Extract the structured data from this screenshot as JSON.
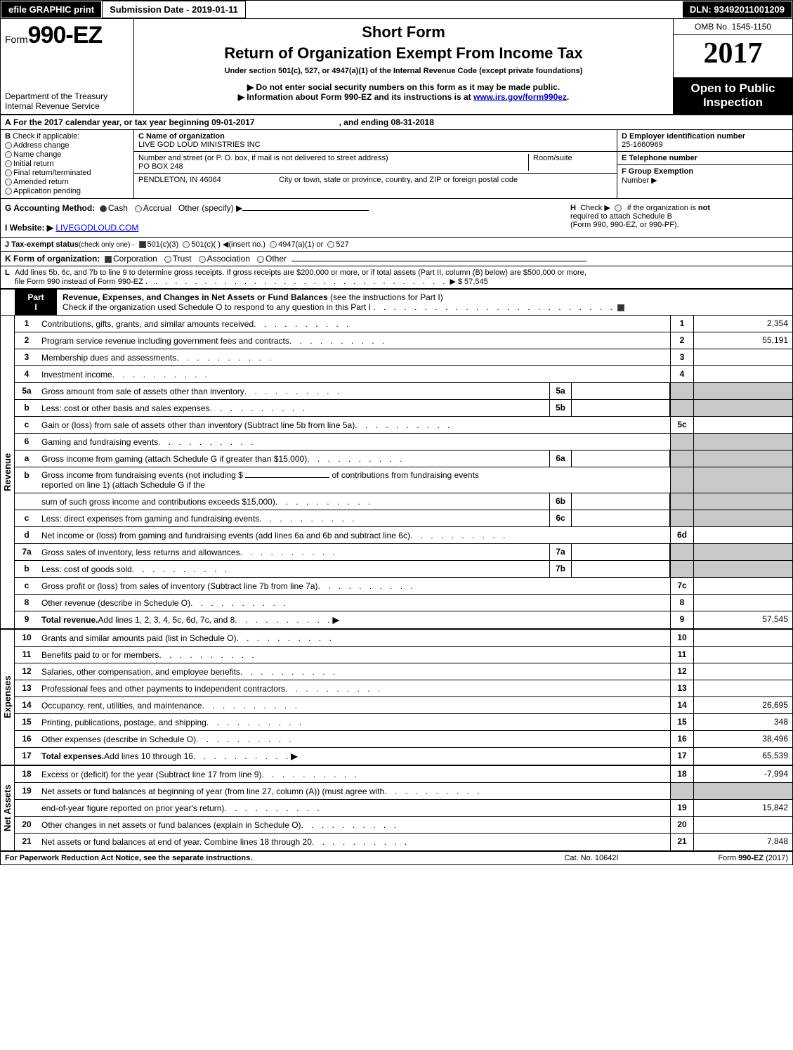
{
  "topbar": {
    "print_btn": "efile GRAPHIC print",
    "submission": "Submission Date - 2019-01-11",
    "dln": "DLN: 93492011001209"
  },
  "hdr": {
    "form_prefix": "Form",
    "form_no": "990-EZ",
    "dept1": "Department of the Treasury",
    "dept2": "Internal Revenue Service",
    "title1": "Short Form",
    "title2": "Return of Organization Exempt From Income Tax",
    "sub": "Under section 501(c), 527, or 4947(a)(1) of the Internal Revenue Code (except private foundations)",
    "note1": "▶ Do not enter social security numbers on this form as it may be made public.",
    "note2_pre": "▶ Information about Form 990-EZ and its instructions is at ",
    "note2_link": "www.irs.gov/form990ez",
    "note2_post": ".",
    "omb": "OMB No. 1545-1150",
    "year": "2017",
    "pub1": "Open to Public",
    "pub2": "Inspection"
  },
  "a": {
    "label": "A",
    "text1": "For the 2017 calendar year, or tax year beginning 09-01-2017",
    "text2": ", and ending 08-31-2018"
  },
  "b": {
    "label": "B",
    "heading": "Check if applicable:",
    "opts": [
      "Address change",
      "Name change",
      "Initial return",
      "Final return/terminated",
      "Amended return",
      "Application pending"
    ]
  },
  "c": {
    "label": "C Name of organization",
    "org": "LIVE GOD LOUD MINISTRIES INC",
    "addr_lbl": "Number and street (or P. O. box, if mail is not delivered to street address)",
    "room_lbl": "Room/suite",
    "addr": "PO BOX 248",
    "city_lbl": "City or town, state or province, country, and ZIP or foreign postal code",
    "city": "PENDLETON, IN  46064"
  },
  "d": {
    "label": "D Employer identification number",
    "val": "25-1660969"
  },
  "e": {
    "label": "E Telephone number",
    "val": ""
  },
  "f": {
    "label": "F Group Exemption",
    "label2": "Number  ▶",
    "val": ""
  },
  "g": {
    "label": "G Accounting Method:",
    "cash": "Cash",
    "accrual": "Accrual",
    "other": "Other (specify) ▶"
  },
  "h": {
    "label": "H",
    "text1": "Check ▶",
    "text2": "if the organization is ",
    "not": "not",
    "text3": "required to attach Schedule B",
    "text4": "(Form 990, 990-EZ, or 990-PF)."
  },
  "i": {
    "label": "I Website: ▶",
    "val": "LIVEGODLOUD.COM"
  },
  "j": {
    "label": "J Tax-exempt status",
    "sub": "(check only one) -",
    "o1": "501(c)(3)",
    "o2": "501(c)(  ) ◀(insert no.)",
    "o3": "4947(a)(1) or",
    "o4": "527"
  },
  "k": {
    "label": "K Form of organization:",
    "o1": "Corporation",
    "o2": "Trust",
    "o3": "Association",
    "o4": "Other"
  },
  "l": {
    "label": "L",
    "text1": "Add lines 5b, 6c, and 7b to line 9 to determine gross receipts. If gross receipts are $200,000 or more, or if total assets (Part II, column (B) below) are $500,000 or more,",
    "text2": "file Form 990 instead of Form 990-EZ",
    "amount": "▶ $ 57,545"
  },
  "part1": {
    "label": "Part I",
    "title": "Revenue, Expenses, and Changes in Net Assets or Fund Balances",
    "title_sub": " (see the instructions for Part I)",
    "check_line": "Check if the organization used Schedule O to respond to any question in this Part I"
  },
  "tabs": {
    "revenue": "Revenue",
    "expenses": "Expenses",
    "netassets": "Net Assets"
  },
  "lines_revenue": [
    {
      "no": "1",
      "desc": "Contributions, gifts, grants, and similar amounts received",
      "box": "1",
      "val": "2,354"
    },
    {
      "no": "2",
      "desc": "Program service revenue including government fees and contracts",
      "box": "2",
      "val": "55,191"
    },
    {
      "no": "3",
      "desc": "Membership dues and assessments",
      "box": "3",
      "val": ""
    },
    {
      "no": "4",
      "desc": "Investment income",
      "box": "4",
      "val": ""
    },
    {
      "no": "5a",
      "desc": "Gross amount from sale of assets other than inventory",
      "sub": "5a",
      "boxgrey": true
    },
    {
      "no": "b",
      "desc": "Less: cost or other basis and sales expenses",
      "sub": "5b",
      "boxgrey": true
    },
    {
      "no": "c",
      "desc": "Gain or (loss) from sale of assets other than inventory (Subtract line 5b from line 5a)",
      "box": "5c",
      "val": ""
    },
    {
      "no": "6",
      "desc": "Gaming and fundraising events",
      "boxgrey": true,
      "noboxno": true
    },
    {
      "no": "a",
      "desc": "Gross income from gaming (attach Schedule G if greater than $15,000)",
      "sub": "6a",
      "boxgrey": true
    },
    {
      "no": "b",
      "desc_pre": "Gross income from fundraising events (not including $ ",
      "desc_mid": " of contributions from fundraising events",
      "desc2": "reported on line 1) (attach Schedule G if the",
      "boxgrey": true,
      "noboxno": true,
      "multiline": true
    },
    {
      "no": "",
      "desc": "sum of such gross income and contributions exceeds $15,000)",
      "sub": "6b",
      "boxgrey": true
    },
    {
      "no": "c",
      "desc": "Less: direct expenses from gaming and fundraising events",
      "sub": "6c",
      "boxgrey": true
    },
    {
      "no": "d",
      "desc": "Net income or (loss) from gaming and fundraising events (add lines 6a and 6b and subtract line 6c)",
      "box": "6d",
      "val": ""
    },
    {
      "no": "7a",
      "desc": "Gross sales of inventory, less returns and allowances",
      "sub": "7a",
      "boxgrey": true
    },
    {
      "no": "b",
      "desc": "Less: cost of goods sold",
      "sub": "7b",
      "boxgrey": true
    },
    {
      "no": "c",
      "desc": "Gross profit or (loss) from sales of inventory (Subtract line 7b from line 7a)",
      "box": "7c",
      "val": ""
    },
    {
      "no": "8",
      "desc": "Other revenue (describe in Schedule O)",
      "box": "8",
      "val": ""
    },
    {
      "no": "9",
      "desc_b": "Total revenue.",
      "desc": " Add lines 1, 2, 3, 4, 5c, 6d, 7c, and 8",
      "box": "9",
      "val": "57,545",
      "arrow": true
    }
  ],
  "lines_expenses": [
    {
      "no": "10",
      "desc": "Grants and similar amounts paid (list in Schedule O)",
      "box": "10",
      "val": ""
    },
    {
      "no": "11",
      "desc": "Benefits paid to or for members",
      "box": "11",
      "val": ""
    },
    {
      "no": "12",
      "desc": "Salaries, other compensation, and employee benefits",
      "box": "12",
      "val": ""
    },
    {
      "no": "13",
      "desc": "Professional fees and other payments to independent contractors",
      "box": "13",
      "val": ""
    },
    {
      "no": "14",
      "desc": "Occupancy, rent, utilities, and maintenance",
      "box": "14",
      "val": "26,695"
    },
    {
      "no": "15",
      "desc": "Printing, publications, postage, and shipping",
      "box": "15",
      "val": "348"
    },
    {
      "no": "16",
      "desc": "Other expenses (describe in Schedule O)",
      "box": "16",
      "val": "38,496"
    },
    {
      "no": "17",
      "desc_b": "Total expenses.",
      "desc": " Add lines 10 through 16",
      "box": "17",
      "val": "65,539",
      "arrow": true
    }
  ],
  "lines_netassets": [
    {
      "no": "18",
      "desc": "Excess or (deficit) for the year (Subtract line 17 from line 9)",
      "box": "18",
      "val": "-7,994"
    },
    {
      "no": "19",
      "desc": "Net assets or fund balances at beginning of year (from line 27, column (A)) (must agree with",
      "boxgrey": true,
      "noboxno": true
    },
    {
      "no": "",
      "desc": "end-of-year figure reported on prior year's return)",
      "box": "19",
      "val": "15,842"
    },
    {
      "no": "20",
      "desc": "Other changes in net assets or fund balances (explain in Schedule O)",
      "box": "20",
      "val": ""
    },
    {
      "no": "21",
      "desc": "Net assets or fund balances at end of year. Combine lines 18 through 20",
      "box": "21",
      "val": "7,848"
    }
  ],
  "footer": {
    "l": "For Paperwork Reduction Act Notice, see the separate instructions.",
    "m": "Cat. No. 10642I",
    "r_pre": "Form ",
    "r_b": "990-EZ",
    "r_post": " (2017)"
  },
  "colors": {
    "black": "#000000",
    "grey": "#c8c8c8",
    "link": "#0000cc"
  }
}
